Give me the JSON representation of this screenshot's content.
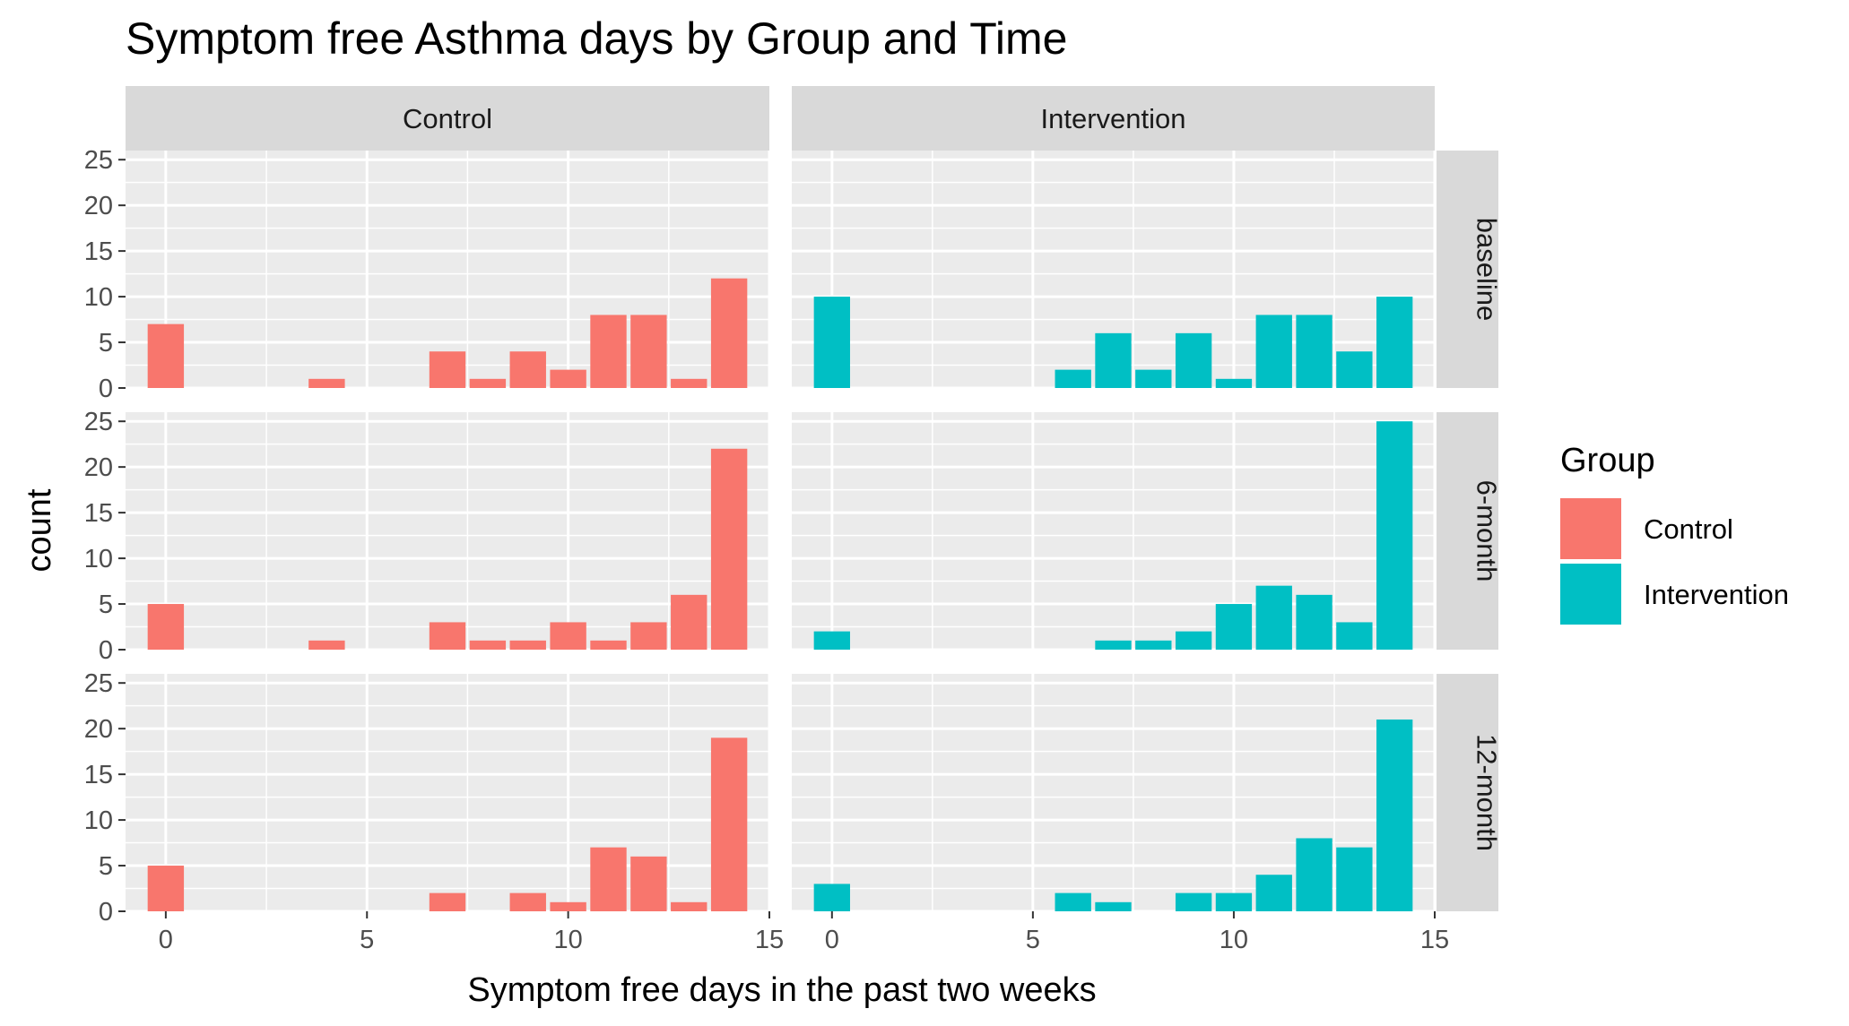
{
  "chart_data": {
    "type": "bar",
    "title": "Symptom free Asthma days by Group and Time",
    "xlabel": "Symptom free days in the past two weeks",
    "ylabel": "count",
    "xlim": [
      -1,
      15
    ],
    "ylim": [
      0,
      26
    ],
    "x_ticks": [
      0,
      5,
      10,
      15
    ],
    "y_ticks": [
      0,
      5,
      10,
      15,
      20,
      25
    ],
    "columns": [
      "Control",
      "Intervention"
    ],
    "rows": [
      "baseline",
      "6-month",
      "12-month"
    ],
    "legend": {
      "title": "Group",
      "position": "right",
      "entries": [
        {
          "name": "Control",
          "color": "#f8766d"
        },
        {
          "name": "Intervention",
          "color": "#00bfc4"
        }
      ]
    },
    "grid": true,
    "panels": [
      {
        "group": "Control",
        "time": "baseline",
        "x": [
          0,
          4,
          7,
          8,
          9,
          10,
          11,
          12,
          13,
          14
        ],
        "counts": [
          7,
          1,
          4,
          1,
          4,
          2,
          8,
          8,
          1,
          12
        ]
      },
      {
        "group": "Intervention",
        "time": "baseline",
        "x": [
          0,
          6,
          7,
          8,
          9,
          10,
          11,
          12,
          13,
          14
        ],
        "counts": [
          10,
          2,
          6,
          2,
          6,
          1,
          8,
          8,
          4,
          10
        ]
      },
      {
        "group": "Control",
        "time": "6-month",
        "x": [
          0,
          4,
          7,
          8,
          9,
          10,
          11,
          12,
          13,
          14
        ],
        "counts": [
          5,
          1,
          3,
          1,
          1,
          3,
          1,
          3,
          6,
          22
        ]
      },
      {
        "group": "Intervention",
        "time": "6-month",
        "x": [
          0,
          7,
          8,
          9,
          10,
          11,
          12,
          13,
          14
        ],
        "counts": [
          2,
          1,
          1,
          2,
          5,
          7,
          6,
          3,
          25
        ]
      },
      {
        "group": "Control",
        "time": "12-month",
        "x": [
          0,
          7,
          9,
          10,
          11,
          12,
          13,
          14
        ],
        "counts": [
          5,
          2,
          2,
          1,
          7,
          6,
          1,
          19
        ]
      },
      {
        "group": "Intervention",
        "time": "12-month",
        "x": [
          0,
          6,
          7,
          9,
          10,
          11,
          12,
          13,
          14
        ],
        "counts": [
          3,
          2,
          1,
          2,
          2,
          4,
          8,
          7,
          21
        ]
      }
    ]
  }
}
